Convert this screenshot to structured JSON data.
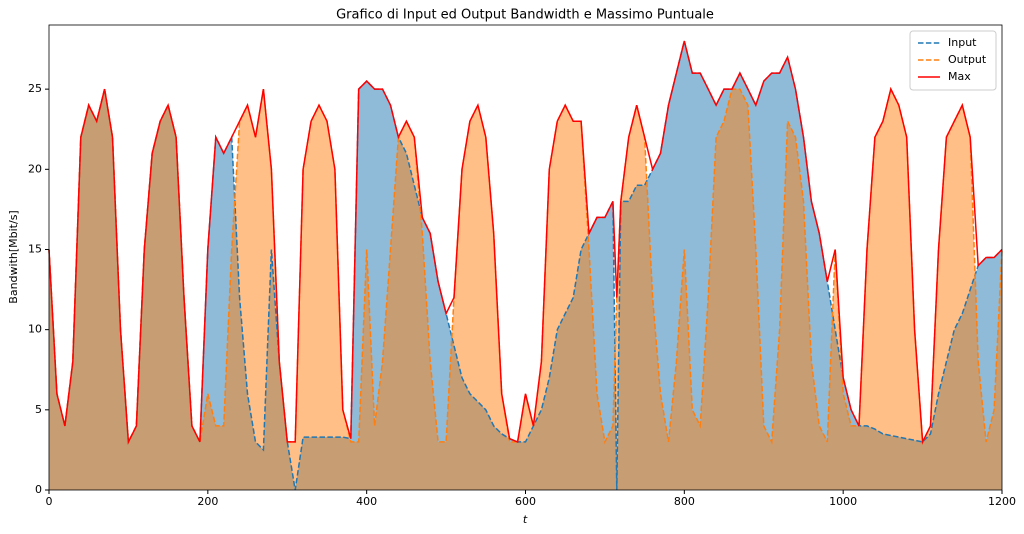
{
  "chart_data": {
    "type": "line",
    "title": "Grafico di Input ed Output Bandwidth e Massimo Puntuale",
    "x_label": "t",
    "y_label": "Bandwith[Mbit/s]",
    "x": [
      0,
      10,
      20,
      30,
      40,
      50,
      60,
      70,
      80,
      90,
      100,
      110,
      120,
      130,
      140,
      150,
      160,
      170,
      180,
      190,
      200,
      210,
      220,
      230,
      240,
      250,
      260,
      270,
      280,
      290,
      300,
      310,
      320,
      330,
      340,
      350,
      360,
      370,
      380,
      390,
      400,
      410,
      420,
      430,
      440,
      450,
      460,
      470,
      480,
      490,
      500,
      510,
      520,
      530,
      540,
      550,
      560,
      570,
      580,
      590,
      600,
      610,
      620,
      630,
      640,
      650,
      660,
      670,
      680,
      690,
      700,
      710,
      715,
      720,
      730,
      740,
      750,
      760,
      770,
      780,
      790,
      800,
      810,
      820,
      830,
      840,
      850,
      860,
      870,
      880,
      890,
      900,
      910,
      920,
      930,
      940,
      950,
      960,
      970,
      980,
      990,
      1000,
      1010,
      1020,
      1030,
      1040,
      1050,
      1060,
      1070,
      1080,
      1090,
      1100,
      1110,
      1120,
      1130,
      1140,
      1150,
      1160,
      1170,
      1180,
      1190,
      1200
    ],
    "series": [
      {
        "name": "Input",
        "color": "#1f77b4",
        "dash": true,
        "fill": true,
        "values": [
          15,
          6,
          4,
          8,
          22,
          24,
          23,
          25,
          22,
          10,
          3,
          4,
          15,
          21,
          23,
          24,
          22,
          12,
          4,
          3,
          15,
          22,
          21,
          22,
          12,
          6,
          3,
          2.5,
          15,
          8,
          3,
          0,
          3.3,
          3.3,
          3.3,
          3.3,
          3.3,
          3.3,
          3.2,
          25,
          25.5,
          25,
          25,
          24,
          22,
          21,
          19,
          17,
          16,
          13,
          11,
          9,
          7,
          6,
          5.5,
          5,
          4,
          3.5,
          3.2,
          3,
          3,
          4,
          5,
          7,
          10,
          11,
          12,
          15,
          16,
          17,
          17,
          18,
          0,
          18,
          18,
          19,
          19,
          20,
          21,
          24,
          26,
          28,
          26,
          26,
          25,
          24,
          25,
          25,
          26,
          25,
          24,
          25.5,
          26,
          26,
          27,
          25,
          22,
          18,
          16,
          13,
          10,
          7,
          5,
          4,
          4,
          3.8,
          3.5,
          3.4,
          3.3,
          3.2,
          3.1,
          3,
          3.5,
          6,
          8,
          10,
          11,
          12.5,
          14,
          14.5,
          14.5,
          15
        ]
      },
      {
        "name": "Output",
        "color": "#ff7f0e",
        "dash": true,
        "fill": true,
        "values": [
          15,
          6,
          4,
          8,
          22,
          24,
          23,
          25,
          22,
          10,
          3,
          4,
          15,
          21,
          23,
          24,
          22,
          12,
          4,
          3,
          6,
          4,
          4,
          15,
          23,
          24,
          22,
          25,
          20,
          8,
          3,
          3,
          20,
          23,
          24,
          23,
          20,
          5,
          3,
          3,
          15,
          4,
          8,
          15,
          22,
          23,
          22,
          16,
          8,
          3,
          3,
          12,
          20,
          23,
          24,
          22,
          16,
          6,
          3,
          3,
          6,
          4,
          8,
          20,
          23,
          24,
          23,
          23,
          15,
          6,
          3,
          4,
          12,
          18,
          22,
          24,
          22,
          12,
          6,
          3,
          8,
          15,
          5,
          4,
          12,
          22,
          23,
          25,
          25,
          24,
          15,
          4,
          3,
          10,
          23,
          22,
          18,
          8,
          4,
          3,
          15,
          6,
          4,
          4,
          15,
          22,
          23,
          25,
          24,
          22,
          10,
          3,
          4,
          15,
          22,
          23,
          24,
          22,
          8,
          3,
          5,
          15
        ]
      },
      {
        "name": "Max",
        "color": "#ff0000",
        "dash": false,
        "fill": false,
        "values": [
          15,
          6,
          4,
          8,
          22,
          24,
          23,
          25,
          22,
          10,
          3,
          4,
          15,
          21,
          23,
          24,
          22,
          12,
          4,
          3,
          15,
          22,
          21,
          22,
          23,
          24,
          22,
          25,
          20,
          8,
          3,
          3,
          20,
          23,
          24,
          23,
          20,
          5,
          3.2,
          25,
          25.5,
          25,
          25,
          24,
          22,
          23,
          22,
          17,
          16,
          13,
          11,
          12,
          20,
          23,
          24,
          22,
          16,
          6,
          3.2,
          3,
          6,
          4,
          8,
          20,
          23,
          24,
          23,
          23,
          16,
          17,
          17,
          18,
          12,
          18,
          22,
          24,
          22,
          20,
          21,
          24,
          26,
          28,
          26,
          26,
          25,
          24,
          25,
          25,
          26,
          25,
          24,
          25.5,
          26,
          26,
          27,
          25,
          22,
          18,
          16,
          13,
          15,
          7,
          5,
          4,
          15,
          22,
          23,
          25,
          24,
          22,
          10,
          3,
          4,
          15,
          22,
          23,
          24,
          22,
          14,
          14.5,
          14.5,
          15
        ]
      }
    ],
    "xlim": [
      0,
      1200
    ],
    "ylim": [
      0,
      29
    ],
    "xticks": [
      0,
      200,
      400,
      600,
      800,
      1000,
      1200
    ],
    "yticks": [
      0,
      5,
      10,
      15,
      20,
      25
    ],
    "legend": "upper right"
  }
}
